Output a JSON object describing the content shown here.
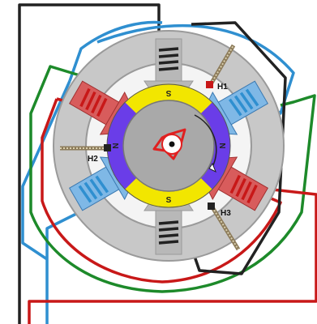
{
  "diagram": {
    "sensor_labels": {
      "h1": "H1",
      "h2": "H2",
      "h3": "H3"
    },
    "magnet_poles": {
      "top": "S",
      "right": "N",
      "bottom": "S",
      "left": "N"
    },
    "colors": {
      "stator": "#c8c8c8",
      "stator_edge": "#9a9a9a",
      "magnet_s": "#f2e600",
      "magnet_n": "#6a3de8",
      "rotor_core": "#a9a9a9",
      "wire_blue": "#2f8fd0",
      "wire_red": "#c81818",
      "wire_green": "#1d8a2a",
      "wire_black": "#222222",
      "coil_red_pole": "#d85c5c",
      "coil_blue_pole": "#7fb8e6",
      "rotor_mark": "#e02020"
    }
  }
}
